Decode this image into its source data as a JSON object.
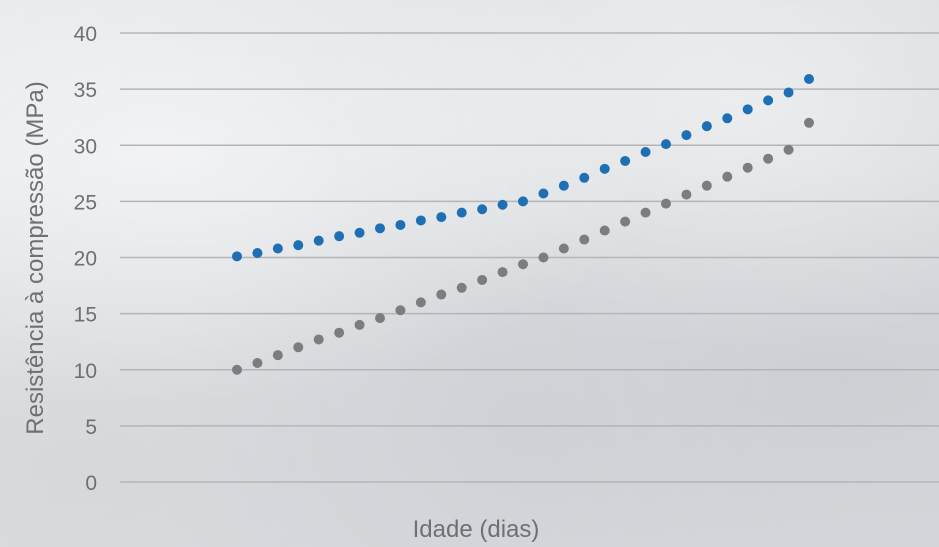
{
  "chart_data": {
    "type": "scatter",
    "xlabel": "Idade (dias)",
    "ylabel": "Resistência à compressão (MPa)",
    "ylim": [
      0,
      40
    ],
    "y_ticks": [
      "0",
      "5",
      "10",
      "15",
      "20",
      "25",
      "30",
      "35",
      "40"
    ],
    "grid": true,
    "x_tick_labels_shown": false,
    "x": [
      1,
      2,
      3,
      4,
      5,
      6,
      7,
      8,
      9,
      10,
      11,
      12,
      13,
      14,
      15,
      16,
      17,
      18,
      19,
      20,
      21,
      22,
      23,
      24,
      25,
      26,
      27,
      28,
      29
    ],
    "series": [
      {
        "color": "#1f6fb5",
        "values": [
          20.1,
          20.4,
          20.8,
          21.1,
          21.5,
          21.9,
          22.2,
          22.6,
          22.9,
          23.3,
          23.6,
          24.0,
          24.3,
          24.7,
          25.0,
          25.7,
          26.4,
          27.1,
          27.9,
          28.6,
          29.4,
          30.1,
          30.9,
          31.7,
          32.4,
          33.2,
          34.0,
          34.7,
          35.9
        ]
      },
      {
        "color": "#7b7d80",
        "values": [
          10.0,
          10.6,
          11.3,
          12.0,
          12.7,
          13.3,
          14.0,
          14.6,
          15.3,
          16.0,
          16.7,
          17.3,
          18.0,
          18.7,
          19.4,
          20.0,
          20.8,
          21.6,
          22.4,
          23.2,
          24.0,
          24.8,
          25.6,
          26.4,
          27.2,
          28.0,
          28.8,
          29.6,
          32.0
        ]
      }
    ]
  }
}
